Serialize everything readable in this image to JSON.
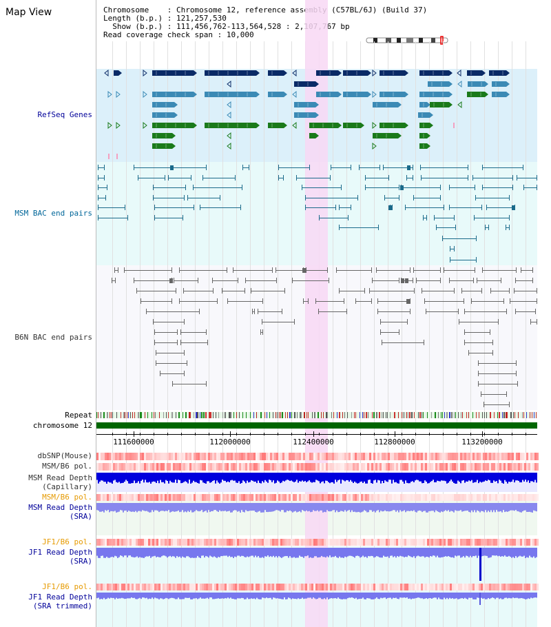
{
  "title": "Map View",
  "info": {
    "chromosome_label": "Chromosome",
    "chromosome_value": "Chromosome 12, reference assembly (C57BL/6J) (Build 37)",
    "length_label": "Length (b.p.)",
    "length_value": "121,257,530",
    "show_label": "Show (b.p.)",
    "show_value": "111,456,762-113,564,528 : 2,107,767 bp",
    "span_label": "Read coverage check span",
    "span_value": "10,000"
  },
  "tracks": {
    "refseq": "RefSeq Genes",
    "msm_bac": "MSM BAC end pairs",
    "b6n_bac": "B6N BAC end pairs",
    "repeat": "Repeat",
    "chrom": "chromosome 12",
    "dbsnp": "dbSNP(Mouse)",
    "msm_b6_pol": "MSM/B6 pol.",
    "msm_depth_cap_1": "MSM Read Depth",
    "msm_depth_cap_2": "(Capillary)",
    "msm_b6_pol_2": "MSM/B6 pol.",
    "msm_depth_sra_1": "MSM Read Depth",
    "msm_depth_sra_2": "(SRA)",
    "jf1_pol": "JF1/B6 pol.",
    "jf1_depth_1": "JF1 Read Depth",
    "jf1_depth_2": "(SRA)",
    "jf1_pol_2": "JF1/B6 pol.",
    "jf1_trim_1": "JF1 Read Depth",
    "jf1_trim_2": "(SRA trimmed)"
  },
  "axis": {
    "ticks": [
      "111600000",
      "112000000",
      "112400000",
      "112800000",
      "113200000"
    ]
  },
  "colors": {
    "refseq_bg": "#dcf0fa",
    "msm_bac_bg": "#e8fafa",
    "b6n_bg": "#f8f8fc",
    "highlight": "#f8d8f4",
    "gene_dark": "#0a2a66",
    "gene_mid": "#3b8ab5",
    "gene_green": "#1a7a1a",
    "label_refseq": "#000099",
    "label_msm": "#006699",
    "label_orange": "#e69a00"
  }
}
